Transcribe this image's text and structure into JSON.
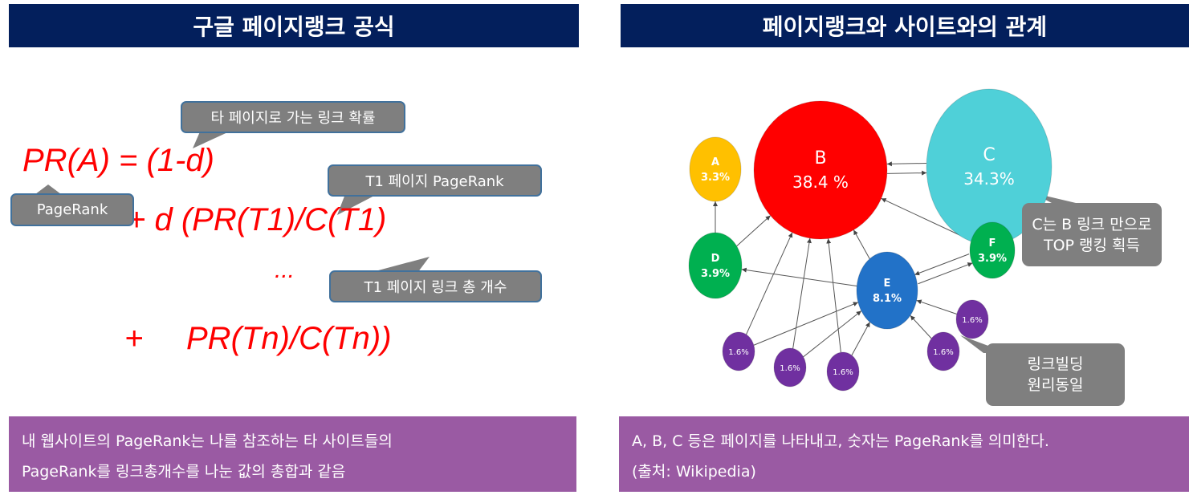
{
  "left": {
    "title": "구글 페이지랭크 공식",
    "formula": {
      "line1": "PR(A) = (1-d)",
      "line2": "+ d (PR(T1)/C(T1)",
      "line3": "...",
      "line4_plus": "+",
      "line4": "PR(Tn)/C(Tn))"
    },
    "callouts": {
      "prob": "타 페이지로 가는 링크 확률",
      "pagerank": "PageRank",
      "t1pr": "T1 페이지 PageRank",
      "t1count": "T1 페이지 링크 총 개수"
    },
    "footer": [
      "내 웹사이트의 PageRank는 나를 참조하는 타 사이트들의",
      "PageRank를 링크총개수를 나눈 값의 총합과 같음"
    ]
  },
  "right": {
    "title": "페이지랭크와 사이트와의 관계",
    "nodes": [
      {
        "id": "A",
        "label": "A",
        "value": "3.3%",
        "color": "#ffc000"
      },
      {
        "id": "B",
        "label": "B",
        "value": "38.4 %",
        "color": "#ff0000"
      },
      {
        "id": "C",
        "label": "C",
        "value": "34.3%",
        "color": "#4fd0d8"
      },
      {
        "id": "D",
        "label": "D",
        "value": "3.9%",
        "color": "#00b050"
      },
      {
        "id": "E",
        "label": "E",
        "value": "8.1%",
        "color": "#2272c8"
      },
      {
        "id": "F",
        "label": "F",
        "value": "3.9%",
        "color": "#00b050"
      },
      {
        "id": "P1",
        "label": "",
        "value": "1.6%",
        "color": "#7030a0"
      },
      {
        "id": "P2",
        "label": "",
        "value": "1.6%",
        "color": "#7030a0"
      },
      {
        "id": "P3",
        "label": "",
        "value": "1.6%",
        "color": "#7030a0"
      },
      {
        "id": "P4",
        "label": "",
        "value": "1.6%",
        "color": "#7030a0"
      },
      {
        "id": "P5",
        "label": "",
        "value": "1.6%",
        "color": "#7030a0"
      }
    ],
    "edges": [
      [
        "B",
        "C"
      ],
      [
        "C",
        "B"
      ],
      [
        "D",
        "A"
      ],
      [
        "D",
        "B"
      ],
      [
        "E",
        "D"
      ],
      [
        "E",
        "B"
      ],
      [
        "F",
        "B"
      ],
      [
        "E",
        "F"
      ],
      [
        "F",
        "E"
      ],
      [
        "P1",
        "B"
      ],
      [
        "P1",
        "E"
      ],
      [
        "P2",
        "B"
      ],
      [
        "P2",
        "E"
      ],
      [
        "P3",
        "B"
      ],
      [
        "P3",
        "E"
      ],
      [
        "P4",
        "E"
      ],
      [
        "P5",
        "E"
      ]
    ],
    "callouts": {
      "c_note": [
        "C는 B 링크 만으로",
        "TOP 랭킹 획득"
      ],
      "lb_note": [
        "링크빌딩",
        "원리동일"
      ]
    },
    "footer": [
      "A, B, C 등은 페이지를 나타내고, 숫자는 PageRank를 의미한다.",
      "(출처: Wikipedia)"
    ]
  }
}
